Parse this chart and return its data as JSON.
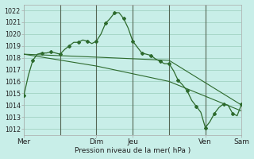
{
  "title": "Pression niveau de la mer( hPa )",
  "bg_color": "#c8eee8",
  "grid_color": "#99ccbb",
  "line_color": "#2d6a2d",
  "vline_color": "#556655",
  "ylim": [
    1011.5,
    1022.5
  ],
  "yticks": [
    1012,
    1013,
    1014,
    1015,
    1016,
    1017,
    1018,
    1019,
    1020,
    1021,
    1022
  ],
  "xlim": [
    0,
    150
  ],
  "xtick_labels": [
    "Mer",
    "Dim",
    "Jeu",
    "Ven",
    "Sam"
  ],
  "series1_x": [
    0,
    3,
    6,
    9,
    12,
    15,
    18,
    21,
    24,
    27,
    30,
    33,
    36,
    39,
    42,
    45,
    48,
    51,
    54,
    57,
    60,
    63,
    66,
    69,
    72,
    75,
    78,
    81,
    84,
    87,
    90,
    93,
    96,
    99,
    102,
    105,
    108,
    111,
    114,
    117,
    120,
    123,
    126,
    129,
    132,
    135,
    138,
    141,
    144
  ],
  "series1_y": [
    1014.8,
    1016.5,
    1017.8,
    1018.3,
    1018.4,
    1018.4,
    1018.5,
    1018.4,
    1018.3,
    1018.7,
    1019.0,
    1019.3,
    1019.3,
    1019.5,
    1019.4,
    1019.2,
    1019.4,
    1020.0,
    1020.9,
    1021.3,
    1021.8,
    1021.8,
    1021.3,
    1020.5,
    1019.4,
    1018.9,
    1018.4,
    1018.3,
    1018.2,
    1017.9,
    1017.7,
    1017.5,
    1017.5,
    1016.9,
    1016.1,
    1015.7,
    1015.2,
    1014.4,
    1013.9,
    1013.4,
    1012.1,
    1012.6,
    1013.3,
    1013.8,
    1014.1,
    1014.0,
    1013.3,
    1013.1,
    1014.1
  ],
  "series2_x": [
    0,
    48,
    96,
    144
  ],
  "series2_y": [
    1018.3,
    1018.05,
    1017.78,
    1014.0
  ],
  "series3_x": [
    0,
    48,
    96,
    144
  ],
  "series3_y": [
    1018.3,
    1017.3,
    1016.0,
    1013.5
  ],
  "marker_x1": [
    0,
    6,
    12,
    18,
    24,
    30,
    36,
    42,
    48,
    54,
    60,
    66,
    72,
    78,
    84,
    90,
    96,
    102,
    108,
    114,
    120,
    126,
    132,
    138,
    144
  ],
  "marker_y1": [
    1014.8,
    1017.8,
    1018.4,
    1018.5,
    1018.3,
    1019.0,
    1019.3,
    1019.4,
    1019.4,
    1020.9,
    1021.8,
    1021.3,
    1019.4,
    1018.4,
    1018.2,
    1017.7,
    1017.5,
    1016.1,
    1015.2,
    1013.9,
    1012.1,
    1013.3,
    1014.1,
    1013.3,
    1014.1
  ]
}
